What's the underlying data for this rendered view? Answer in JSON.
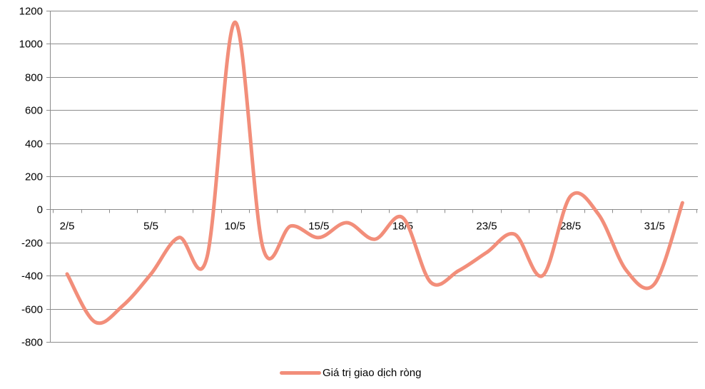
{
  "chart_data": {
    "type": "line",
    "title": "",
    "xlabel": "",
    "ylabel": "",
    "ylim": [
      -800,
      1200
    ],
    "y_ticks": [
      1200,
      1000,
      800,
      600,
      400,
      200,
      0,
      -200,
      -400,
      -600,
      -800
    ],
    "grid": "horizontal",
    "legend_position": "bottom",
    "x_tick_labels": [
      "2/5",
      "5/5",
      "10/5",
      "15/5",
      "18/5",
      "23/5",
      "28/5",
      "31/5"
    ],
    "series": [
      {
        "name": "Giá trị giao dịch ròng",
        "color": "#F28E7A",
        "values": [
          -390,
          -680,
          -580,
          -390,
          -170,
          -290,
          1130,
          -230,
          -100,
          -170,
          -80,
          -180,
          -50,
          -440,
          -370,
          -260,
          -150,
          -400,
          80,
          -30,
          -370,
          -450,
          40
        ]
      }
    ]
  }
}
